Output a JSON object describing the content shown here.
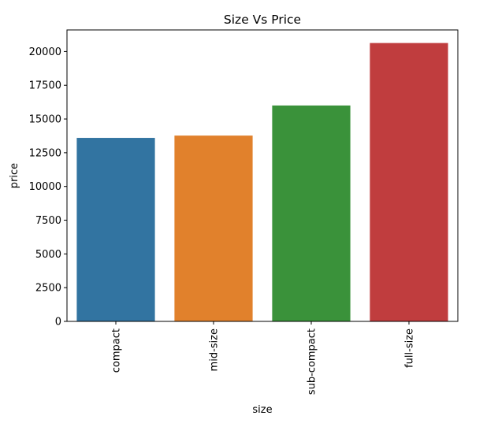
{
  "chart_data": {
    "type": "bar",
    "title": "Size Vs Price",
    "xlabel": "size",
    "ylabel": "price",
    "categories": [
      "compact",
      "mid-size",
      "sub-compact",
      "full-size"
    ],
    "values": [
      13600,
      13770,
      16000,
      20630
    ],
    "colors": [
      "#3274a1",
      "#e1812c",
      "#3a923a",
      "#c03d3e"
    ],
    "ylim": [
      0,
      21600
    ],
    "yticks": [
      0,
      2500,
      5000,
      7500,
      10000,
      12500,
      15000,
      17500,
      20000
    ],
    "ytick_labels": [
      "0",
      "2500",
      "5000",
      "7500",
      "10000",
      "12500",
      "15000",
      "17500",
      "20000"
    ],
    "grid": false,
    "legend": "none"
  }
}
